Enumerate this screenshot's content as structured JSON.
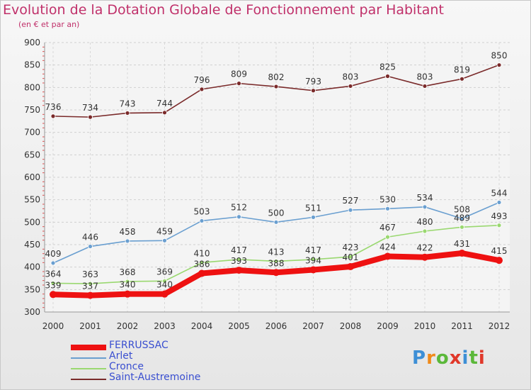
{
  "title": "Evolution de la Dotation Globale de Fonctionnement par Habitant",
  "subtitle": "(en € et par an)",
  "logo_text": "Proxiti",
  "logo_colors": [
    "#3d8fd6",
    "#f08a1a",
    "#5bb83a",
    "#e0382a",
    "#3d8fd6",
    "#5bb83a",
    "#e0382a"
  ],
  "chart_data": {
    "type": "line",
    "title": "Evolution de la Dotation Globale de Fonctionnement par Habitant",
    "subtitle": "(en € et par an)",
    "x": [
      "2000",
      "2001",
      "2002",
      "2003",
      "2004",
      "2005",
      "2006",
      "2007",
      "2008",
      "2009",
      "2010",
      "2011",
      "2012"
    ],
    "ylim": [
      300,
      900
    ],
    "yticks": [
      "300",
      "350",
      "400",
      "450",
      "500",
      "550",
      "600",
      "650",
      "700",
      "750",
      "800",
      "850",
      "900"
    ],
    "grid": true,
    "legend_position": "bottom-left",
    "series": [
      {
        "name": "FERRUSSAC",
        "color": "#ee1111",
        "values": [
          339,
          337,
          340,
          340,
          386,
          393,
          388,
          394,
          401,
          424,
          422,
          431,
          415
        ],
        "labels": [
          "339",
          "337",
          "340",
          "340",
          "386",
          "393",
          "388",
          "394",
          "401",
          "424",
          "422",
          "431",
          "415"
        ]
      },
      {
        "name": "Arlet",
        "color": "#6a9fd0",
        "values": [
          409,
          446,
          458,
          459,
          503,
          512,
          500,
          511,
          527,
          530,
          534,
          508,
          544
        ],
        "labels": [
          "409",
          "446",
          "458",
          "459",
          "503",
          "512",
          "500",
          "511",
          "527",
          "530",
          "534",
          "508",
          "544"
        ]
      },
      {
        "name": "Cronce",
        "color": "#9ad870",
        "values": [
          364,
          363,
          368,
          369,
          410,
          417,
          413,
          417,
          423,
          467,
          480,
          489,
          493
        ],
        "labels": [
          "364",
          "363",
          "368",
          "369",
          "410",
          "417",
          "413",
          "417",
          "423",
          "467",
          "480",
          "489",
          "493"
        ]
      },
      {
        "name": "Saint-Austremoine",
        "color": "#7a2a2a",
        "values": [
          736,
          734,
          743,
          744,
          796,
          809,
          802,
          793,
          803,
          825,
          803,
          819,
          850
        ],
        "labels": [
          "736",
          "734",
          "743",
          "744",
          "796",
          "809",
          "802",
          "793",
          "803",
          "825",
          "803",
          "819",
          "850"
        ]
      }
    ]
  }
}
